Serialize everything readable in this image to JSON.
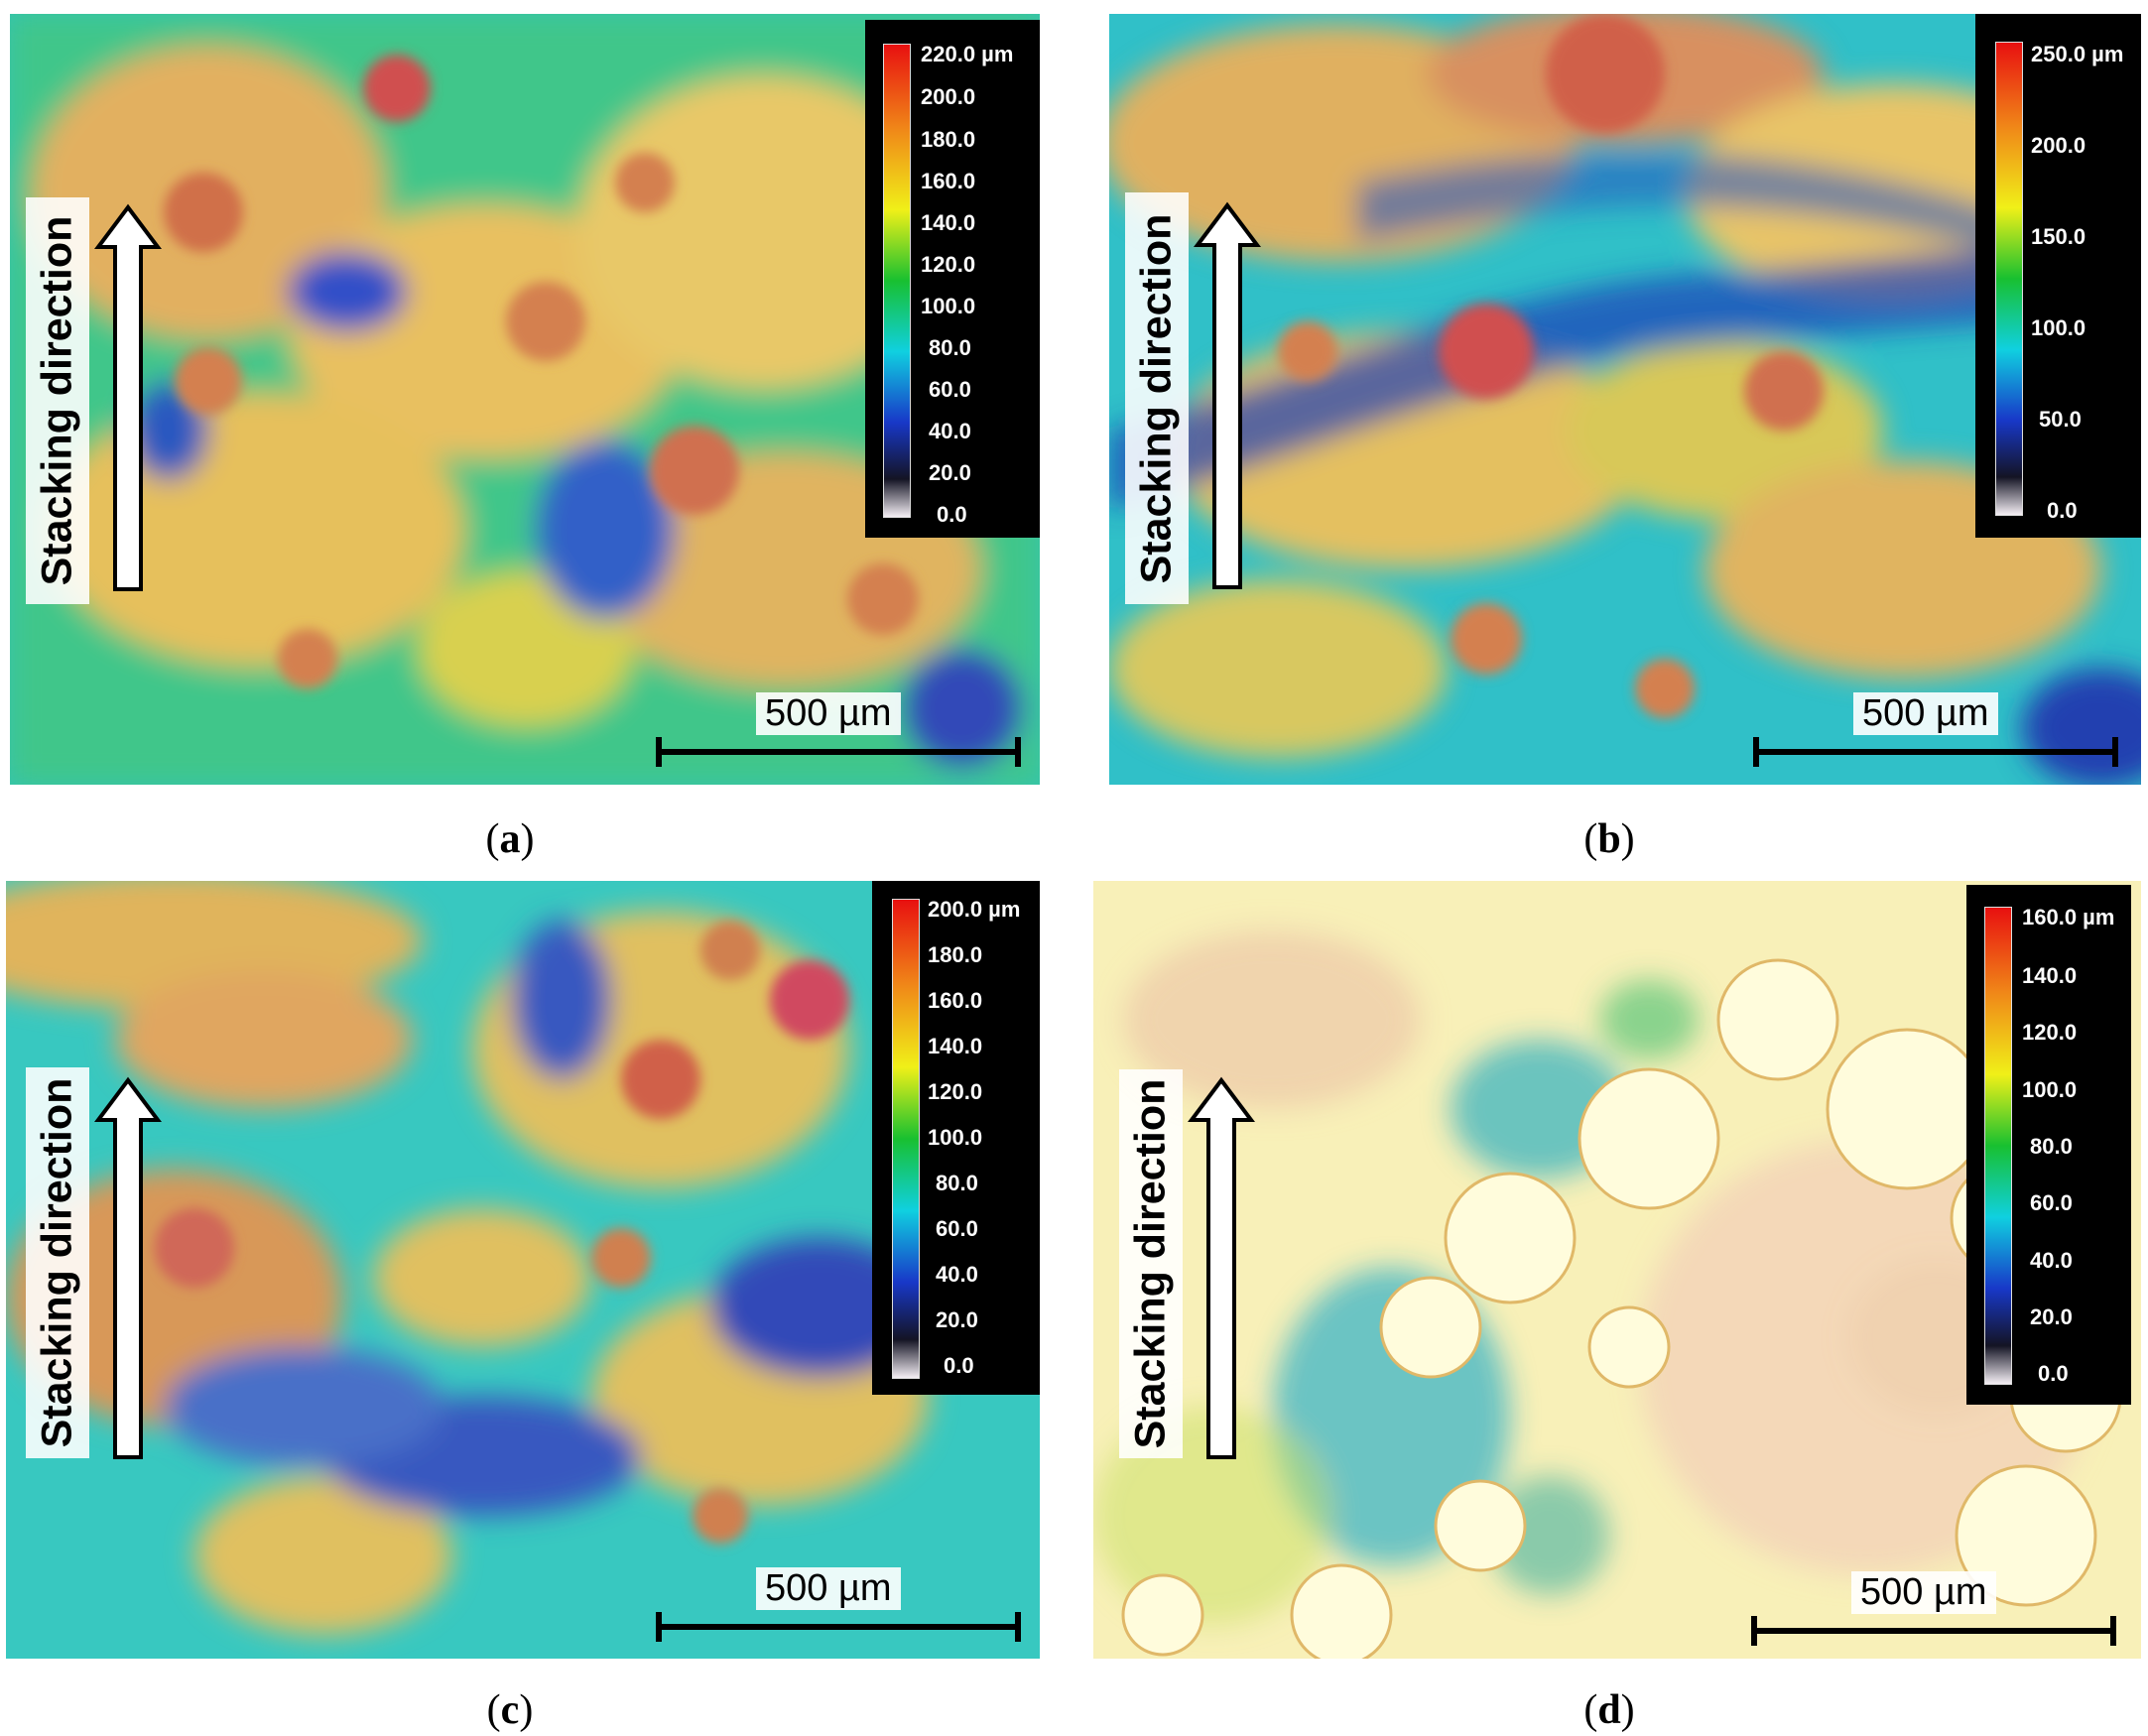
{
  "panels": [
    {
      "caption": "a",
      "stacking_label": "Stacking direction",
      "scale_label": "500 µm",
      "legend_ticks": [
        "220.0 µm",
        "200.0",
        "180.0",
        "160.0",
        "140.0",
        "120.0",
        "100.0",
        "80.0",
        "60.0",
        "40.0",
        "20.0",
        "0.0"
      ]
    },
    {
      "caption": "b",
      "stacking_label": "Stacking direction",
      "scale_label": "500 µm",
      "legend_ticks": [
        "250.0 µm",
        "200.0",
        "150.0",
        "100.0",
        "50.0",
        "0.0"
      ]
    },
    {
      "caption": "c",
      "stacking_label": "Stacking direction",
      "scale_label": "500 µm",
      "legend_ticks": [
        "200.0 µm",
        "180.0",
        "160.0",
        "140.0",
        "120.0",
        "100.0",
        "80.0",
        "60.0",
        "40.0",
        "20.0",
        "0.0"
      ]
    },
    {
      "caption": "d",
      "stacking_label": "Stacking direction",
      "scale_label": "500 µm",
      "legend_ticks": [
        "160.0 µm",
        "140.0",
        "120.0",
        "100.0",
        "80.0",
        "60.0",
        "40.0",
        "20.0",
        "0.0"
      ]
    }
  ],
  "colors": {
    "height_scale": [
      "#f0e0e8",
      "#1a2a8a",
      "#00d8e8",
      "#10c040",
      "#f0f020",
      "#f08010",
      "#e00000"
    ]
  }
}
